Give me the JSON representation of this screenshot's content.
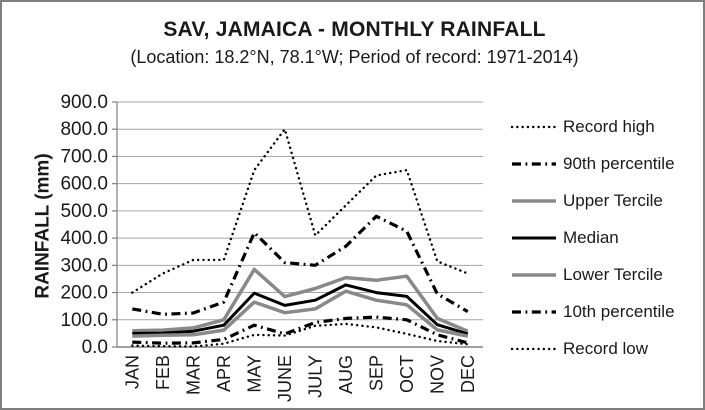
{
  "chart_data": {
    "type": "line",
    "title": "SAV, JAMAICA - MONTHLY RAINFALL",
    "subtitle": "(Location: 18.2°N, 78.1°W; Period of record: 1971-2014)",
    "xlabel": "",
    "ylabel": "RAINFALL (mm)",
    "ylim": [
      0,
      900
    ],
    "y_tick_interval": 100,
    "y_tick_labels": [
      "0.0",
      "100.0",
      "200.0",
      "300.0",
      "400.0",
      "500.0",
      "600.0",
      "700.0",
      "800.0",
      "900.0"
    ],
    "categories": [
      "JAN",
      "FEB",
      "MAR",
      "APR",
      "MAY",
      "JUNE",
      "JULY",
      "AUG",
      "SEP",
      "OCT",
      "NOV",
      "DEC"
    ],
    "grid": "horizontal",
    "legend_position": "right",
    "axis_color": "#7f7f7f",
    "gridline_color": "#a6a6a6",
    "series": [
      {
        "name": "Record high",
        "line": "dotted",
        "color": "#000000",
        "width": 2.4,
        "values": [
          200,
          270,
          320,
          320,
          650,
          800,
          410,
          520,
          630,
          650,
          315,
          270
        ]
      },
      {
        "name": "90th percentile",
        "line": "dashdot",
        "color": "#000000",
        "width": 3.2,
        "values": [
          140,
          120,
          125,
          165,
          420,
          310,
          300,
          370,
          480,
          425,
          195,
          130
        ]
      },
      {
        "name": "Upper Tercile",
        "line": "solid",
        "color": "#898989",
        "width": 3.5,
        "values": [
          60,
          62,
          70,
          100,
          285,
          185,
          215,
          255,
          245,
          260,
          105,
          58
        ]
      },
      {
        "name": "Median",
        "line": "solid",
        "color": "#000000",
        "width": 3.0,
        "values": [
          50,
          51,
          58,
          80,
          198,
          153,
          172,
          228,
          200,
          186,
          82,
          48
        ]
      },
      {
        "name": "Lower Tercile",
        "line": "solid",
        "color": "#898989",
        "width": 3.5,
        "values": [
          40,
          43,
          45,
          62,
          165,
          126,
          140,
          205,
          172,
          155,
          63,
          40
        ]
      },
      {
        "name": "10th percentile",
        "line": "dashdot",
        "color": "#000000",
        "width": 3.2,
        "values": [
          18,
          14,
          15,
          28,
          80,
          48,
          90,
          105,
          110,
          100,
          45,
          15
        ]
      },
      {
        "name": "Record low",
        "line": "dotted",
        "color": "#000000",
        "width": 2.4,
        "values": [
          5,
          3,
          2,
          12,
          45,
          42,
          78,
          85,
          72,
          48,
          22,
          10
        ]
      }
    ]
  }
}
